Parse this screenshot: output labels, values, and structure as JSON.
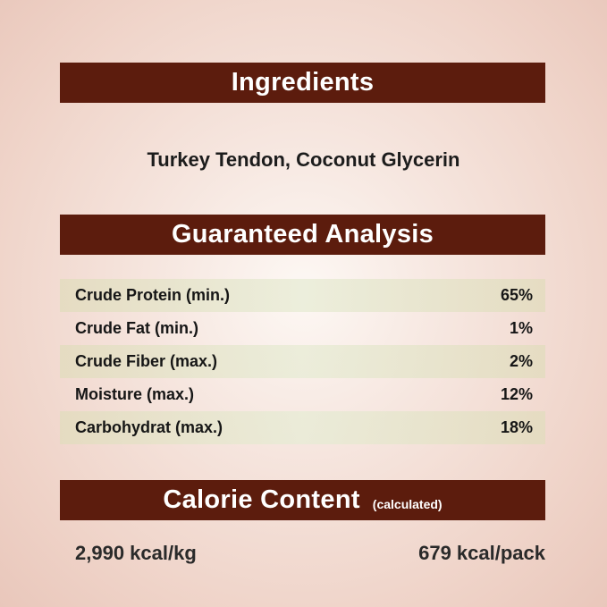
{
  "ingredients": {
    "title": "Ingredients",
    "text": "Turkey Tendon, Coconut Glycerin"
  },
  "analysis": {
    "title": "Guaranteed Analysis",
    "rows": [
      {
        "label": "Crude Protein (min.)",
        "value": "65%"
      },
      {
        "label": "Crude Fat (min.)",
        "value": "1%"
      },
      {
        "label": "Crude Fiber (max.)",
        "value": "2%"
      },
      {
        "label": "Moisture (max.)",
        "value": "12%"
      },
      {
        "label": "Carbohydrat (max.)",
        "value": "18%"
      }
    ]
  },
  "calorie": {
    "title": "Calorie Content",
    "subtitle": "(calculated)",
    "per_kg": "2,990 kcal/kg",
    "per_pack": "679 kcal/pack"
  },
  "colors": {
    "banner": "#5c1c0d",
    "row_highlight": "#e6e6cc"
  }
}
